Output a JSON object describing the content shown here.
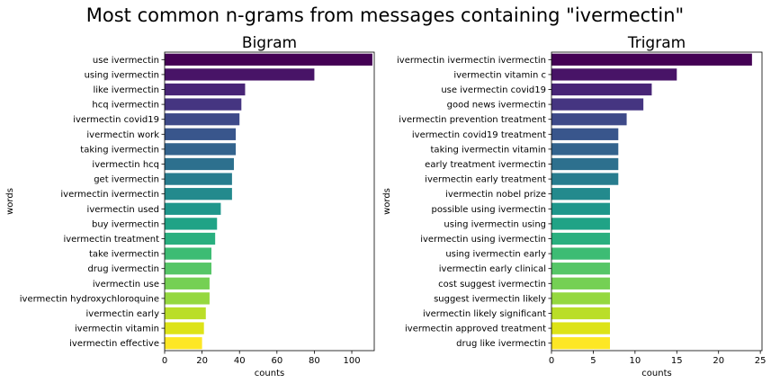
{
  "figure": {
    "title": "Most common n-grams from messages containing \"ivermectin\""
  },
  "chart_data": [
    {
      "type": "bar",
      "orientation": "horizontal",
      "title": "Bigram",
      "xlabel": "counts",
      "ylabel": "words",
      "xlim": [
        0,
        112
      ],
      "xticks": [
        0,
        20,
        40,
        60,
        80,
        100
      ],
      "categories": [
        "use ivermectin",
        "using ivermectin",
        "like ivermectin",
        "hcq ivermectin",
        "ivermectin covid19",
        "ivermectin work",
        "taking ivermectin",
        "ivermectin hcq",
        "get ivermectin",
        "ivermectin ivermectin",
        "ivermectin used",
        "buy ivermectin",
        "ivermectin treatment",
        "take ivermectin",
        "drug ivermectin",
        "ivermectin use",
        "ivermectin hydroxychloroquine",
        "ivermectin early",
        "ivermectin vitamin",
        "ivermectin effective"
      ],
      "values": [
        111,
        80,
        43,
        41,
        40,
        38,
        38,
        37,
        36,
        36,
        30,
        28,
        27,
        25,
        25,
        24,
        24,
        22,
        21,
        20
      ],
      "palette": "viridis"
    },
    {
      "type": "bar",
      "orientation": "horizontal",
      "title": "Trigram",
      "xlabel": "counts",
      "ylabel": "words",
      "xlim": [
        0,
        25.2
      ],
      "xticks": [
        0,
        5,
        10,
        15,
        20,
        25
      ],
      "categories": [
        "ivermectin ivermectin ivermectin",
        "ivermectin vitamin c",
        "use ivermectin covid19",
        "good news ivermectin",
        "ivermectin prevention treatment",
        "ivermectin covid19 treatment",
        "taking ivermectin vitamin",
        "early treatment ivermectin",
        "ivermectin early treatment",
        "ivermectin nobel prize",
        "possible using ivermectin",
        "using ivermectin using",
        "ivermectin using ivermectin",
        "using ivermectin early",
        "ivermectin early clinical",
        "cost suggest ivermectin",
        "suggest ivermectin likely",
        "ivermectin likely significant",
        "ivermectin approved treatment",
        "drug like ivermectin"
      ],
      "values": [
        24,
        15,
        12,
        11,
        9,
        8,
        8,
        8,
        8,
        7,
        7,
        7,
        7,
        7,
        7,
        7,
        7,
        7,
        7,
        7
      ],
      "palette": "viridis"
    }
  ],
  "colors": {
    "viridis_20": [
      "#440154",
      "#481467",
      "#482576",
      "#453581",
      "#3e4a89",
      "#39568c",
      "#33638d",
      "#2d708e",
      "#287c8e",
      "#238a8d",
      "#1f968b",
      "#20a386",
      "#29af7f",
      "#3dbc74",
      "#56c667",
      "#75d054",
      "#95d840",
      "#bade28",
      "#dde318",
      "#fde725"
    ]
  }
}
